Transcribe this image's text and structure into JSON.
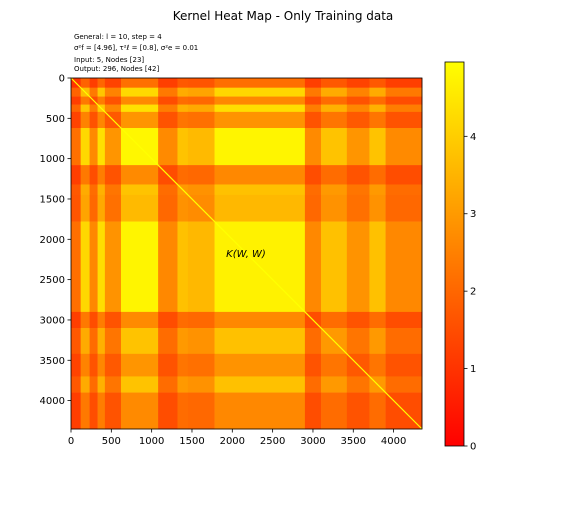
{
  "chart_data": {
    "type": "heatmap",
    "title": "Kernel Heat Map - Only Training data",
    "info_lines": [
      "General: l = 10, step = 4",
      "σ²f = [4.96], τ²ℓ = [0.8], σ²e = 0.01",
      "Input: 5, Nodes [23]",
      "Output: 296, Nodes [42]"
    ],
    "annotation": "K(W, W)",
    "matrix_size": 4352,
    "xlim": [
      0,
      4352
    ],
    "ylim": [
      4352,
      0
    ],
    "x_ticks": [
      0,
      500,
      1000,
      1500,
      2000,
      2500,
      3000,
      3500,
      4000
    ],
    "y_ticks": [
      0,
      500,
      1000,
      1500,
      2000,
      2500,
      3000,
      3500,
      4000
    ],
    "colormap": "autumn",
    "colormap_stops": [
      "#ff0000",
      "#ffff00"
    ],
    "colorbar": {
      "min": 0,
      "max": 4.96,
      "ticks": [
        0,
        1,
        2,
        3,
        4
      ]
    },
    "block_levels": [
      {
        "from": 0,
        "to": 120,
        "level": 0.2
      },
      {
        "from": 120,
        "to": 230,
        "level": 0.75
      },
      {
        "from": 230,
        "to": 330,
        "level": 0.3
      },
      {
        "from": 330,
        "to": 420,
        "level": 0.8
      },
      {
        "from": 420,
        "to": 620,
        "level": 0.35
      },
      {
        "from": 620,
        "to": 1080,
        "level": 0.97
      },
      {
        "from": 1080,
        "to": 1320,
        "level": 0.3
      },
      {
        "from": 1320,
        "to": 1450,
        "level": 0.6
      },
      {
        "from": 1450,
        "to": 1780,
        "level": 0.55
      },
      {
        "from": 1780,
        "to": 2900,
        "level": 0.95
      },
      {
        "from": 2900,
        "to": 3100,
        "level": 0.3
      },
      {
        "from": 3100,
        "to": 3420,
        "level": 0.6
      },
      {
        "from": 3420,
        "to": 3700,
        "level": 0.35
      },
      {
        "from": 3700,
        "to": 3900,
        "level": 0.6
      },
      {
        "from": 3900,
        "to": 4352,
        "level": 0.3
      }
    ]
  }
}
